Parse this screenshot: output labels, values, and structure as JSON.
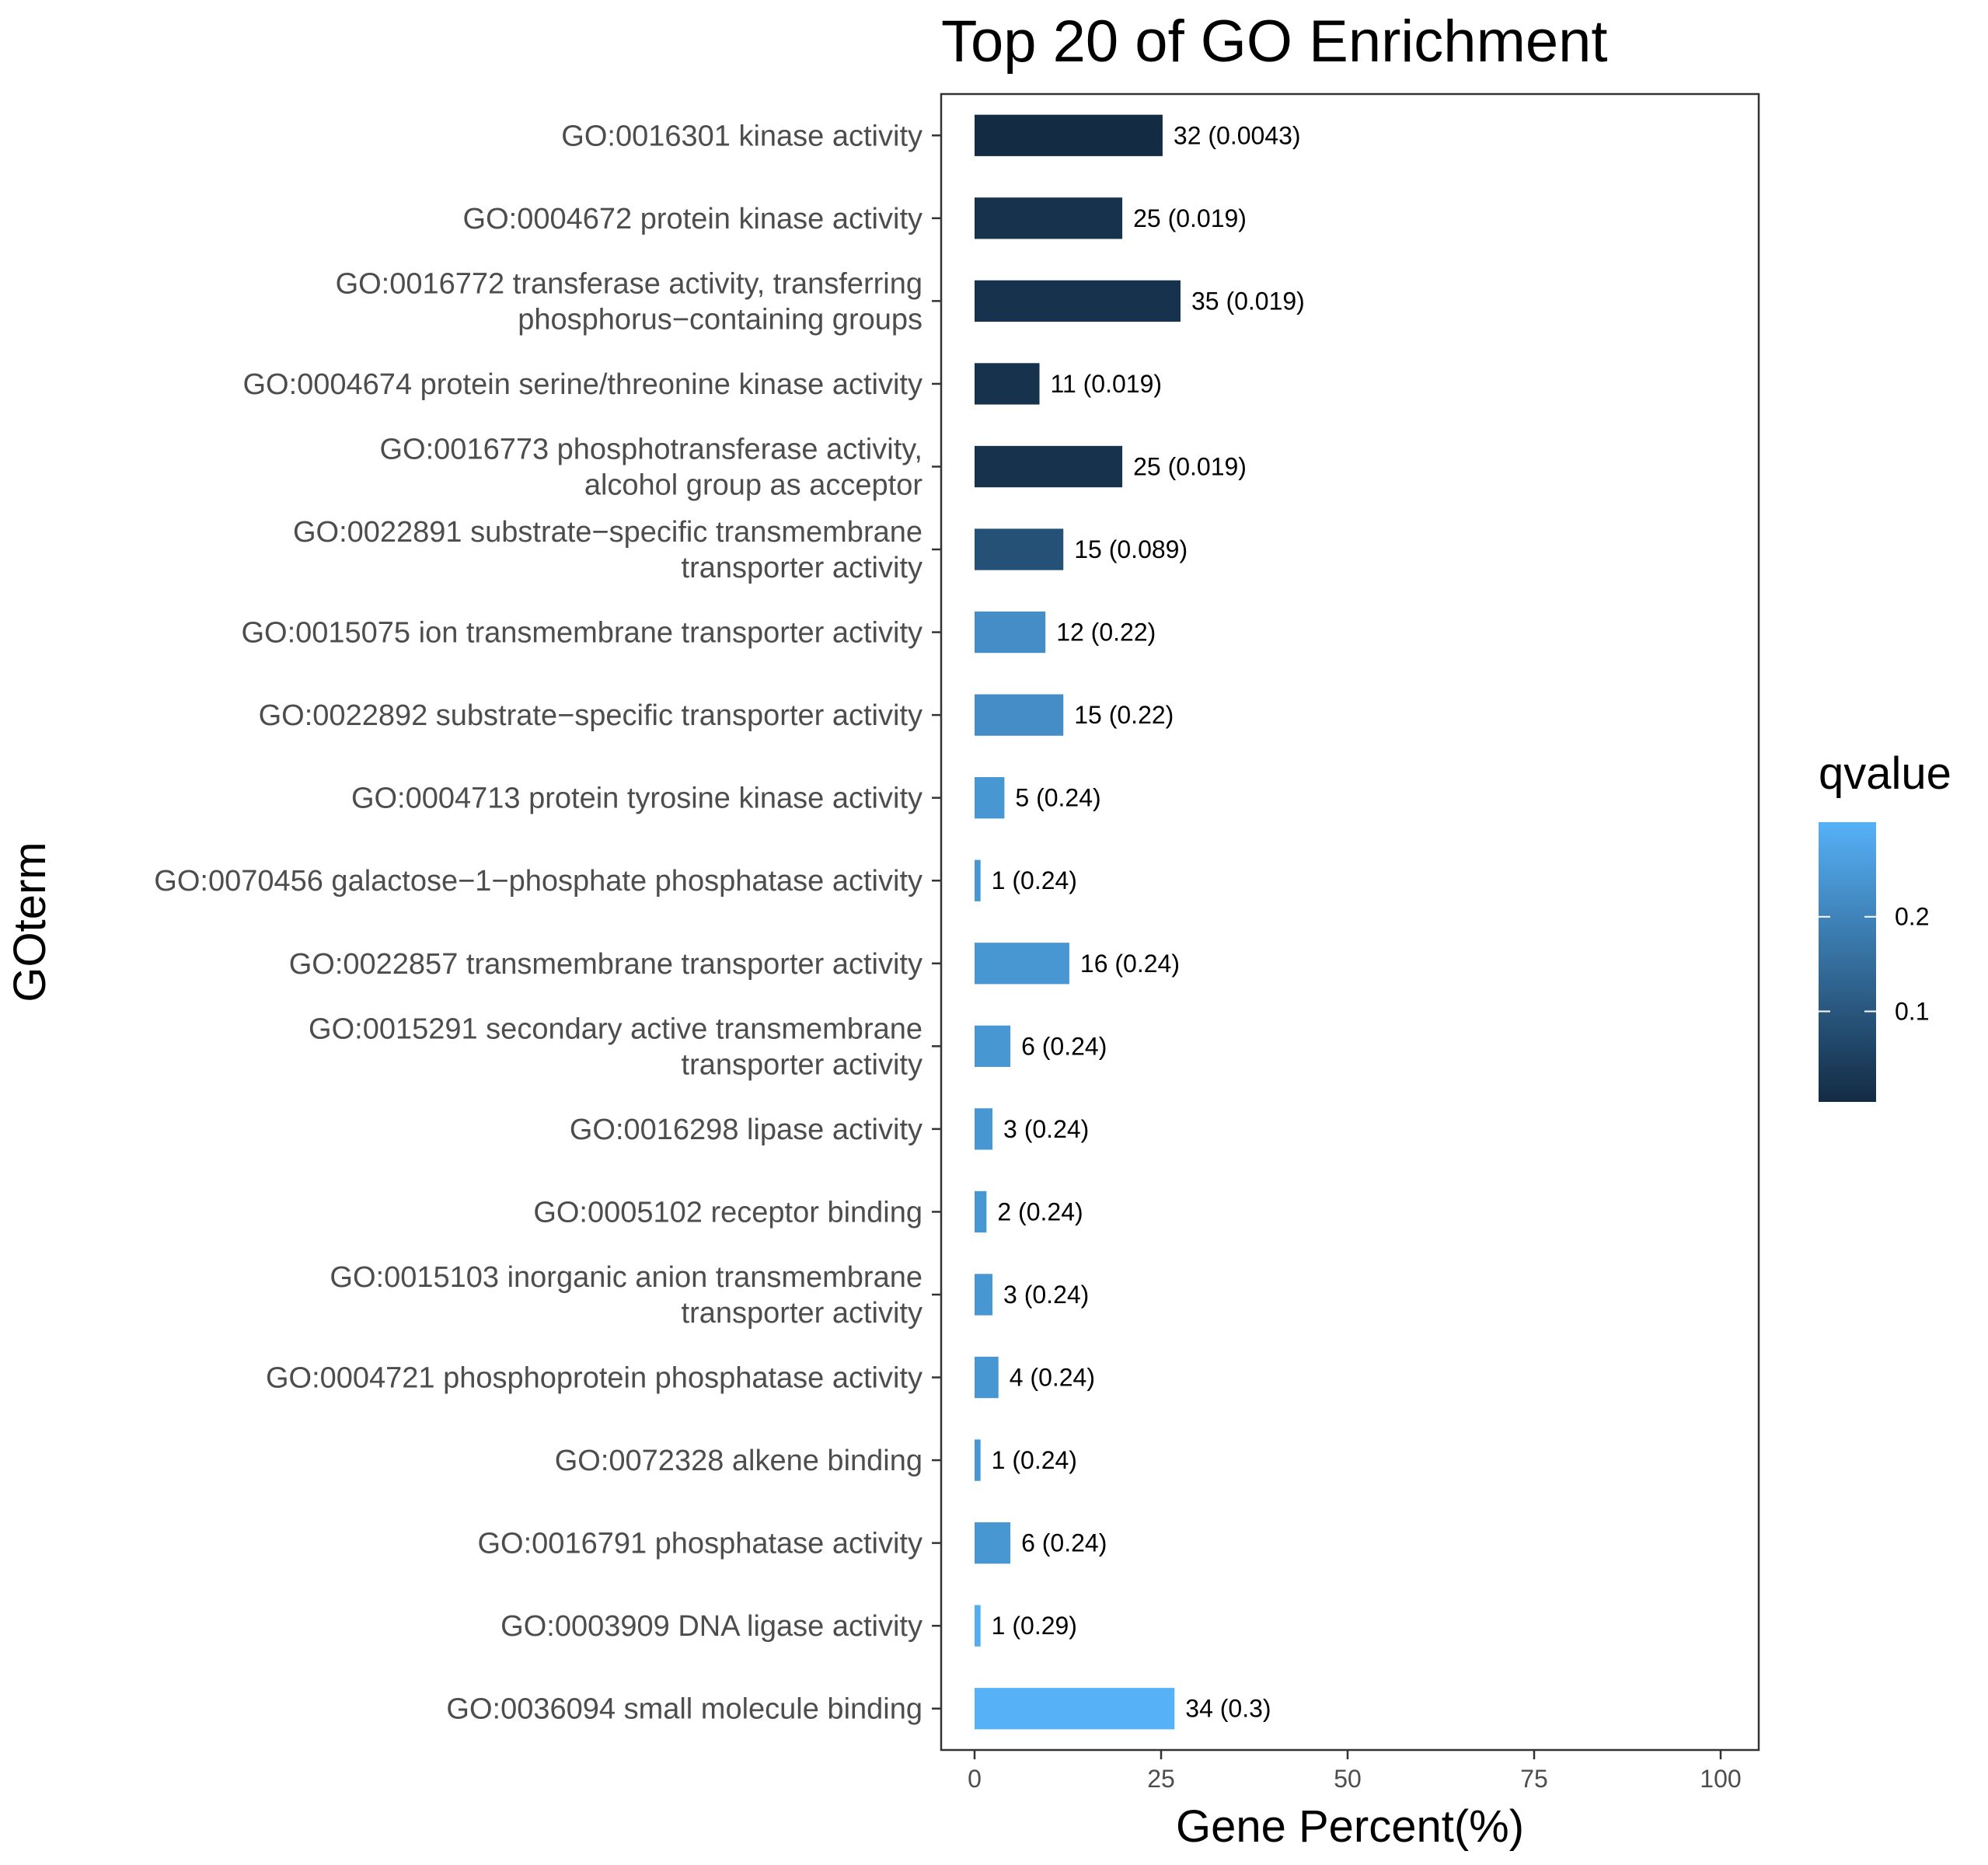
{
  "chart_data": {
    "type": "bar",
    "orientation": "horizontal",
    "title": "Top 20 of GO Enrichment",
    "xlabel": "Gene Percent(%)",
    "ylabel": "GOterm",
    "xlim": [
      0,
      100
    ],
    "xticks": [
      0,
      25,
      50,
      75,
      100
    ],
    "grid": false,
    "legend": {
      "title": "qvalue",
      "type": "colorbar",
      "placement": "right",
      "min": 0.0043,
      "max": 0.3,
      "ticks": [
        0.1,
        0.2
      ],
      "tick_labels": [
        "0.1",
        "0.2"
      ],
      "color_low": "#132b43",
      "color_high": "#56b1f7"
    },
    "bars": [
      {
        "lines": [
          "GO:0016301 kinase activity"
        ],
        "value": 25.2,
        "qvalue": 0.0043,
        "label": "32 (0.0043)"
      },
      {
        "lines": [
          "GO:0004672 protein kinase activity"
        ],
        "value": 19.8,
        "qvalue": 0.019,
        "label": "25 (0.019)"
      },
      {
        "lines": [
          "GO:0016772 transferase activity, transferring",
          "phosphorus−containing groups"
        ],
        "value": 27.6,
        "qvalue": 0.019,
        "label": "35 (0.019)"
      },
      {
        "lines": [
          "GO:0004674 protein serine/threonine kinase activity"
        ],
        "value": 8.7,
        "qvalue": 0.019,
        "label": "11 (0.019)"
      },
      {
        "lines": [
          "GO:0016773 phosphotransferase activity,",
          "alcohol group as acceptor"
        ],
        "value": 19.8,
        "qvalue": 0.019,
        "label": "25 (0.019)"
      },
      {
        "lines": [
          "GO:0022891 substrate−specific transmembrane",
          "transporter activity"
        ],
        "value": 11.9,
        "qvalue": 0.089,
        "label": "15 (0.089)"
      },
      {
        "lines": [
          "GO:0015075 ion transmembrane transporter activity"
        ],
        "value": 9.5,
        "qvalue": 0.22,
        "label": "12 (0.22)"
      },
      {
        "lines": [
          "GO:0022892 substrate−specific transporter activity"
        ],
        "value": 11.9,
        "qvalue": 0.22,
        "label": "15 (0.22)"
      },
      {
        "lines": [
          "GO:0004713 protein tyrosine kinase activity"
        ],
        "value": 4.0,
        "qvalue": 0.24,
        "label": "5 (0.24)"
      },
      {
        "lines": [
          "GO:0070456 galactose−1−phosphate phosphatase activity"
        ],
        "value": 0.8,
        "qvalue": 0.24,
        "label": "1 (0.24)"
      },
      {
        "lines": [
          "GO:0022857 transmembrane transporter activity"
        ],
        "value": 12.7,
        "qvalue": 0.24,
        "label": "16 (0.24)"
      },
      {
        "lines": [
          "GO:0015291 secondary active transmembrane",
          "transporter activity"
        ],
        "value": 4.8,
        "qvalue": 0.24,
        "label": "6 (0.24)"
      },
      {
        "lines": [
          "GO:0016298 lipase activity"
        ],
        "value": 2.4,
        "qvalue": 0.24,
        "label": "3 (0.24)"
      },
      {
        "lines": [
          "GO:0005102 receptor binding"
        ],
        "value": 1.6,
        "qvalue": 0.24,
        "label": "2 (0.24)"
      },
      {
        "lines": [
          "GO:0015103 inorganic anion transmembrane",
          "transporter activity"
        ],
        "value": 2.4,
        "qvalue": 0.24,
        "label": "3 (0.24)"
      },
      {
        "lines": [
          "GO:0004721 phosphoprotein phosphatase activity"
        ],
        "value": 3.2,
        "qvalue": 0.24,
        "label": "4 (0.24)"
      },
      {
        "lines": [
          "GO:0072328 alkene binding"
        ],
        "value": 0.8,
        "qvalue": 0.24,
        "label": "1 (0.24)"
      },
      {
        "lines": [
          "GO:0016791 phosphatase activity"
        ],
        "value": 4.8,
        "qvalue": 0.24,
        "label": "6 (0.24)"
      },
      {
        "lines": [
          "GO:0003909 DNA ligase activity"
        ],
        "value": 0.8,
        "qvalue": 0.29,
        "label": "1 (0.29)"
      },
      {
        "lines": [
          "GO:0036094 small molecule binding"
        ],
        "value": 26.8,
        "qvalue": 0.3,
        "label": "34 (0.3)"
      }
    ]
  }
}
